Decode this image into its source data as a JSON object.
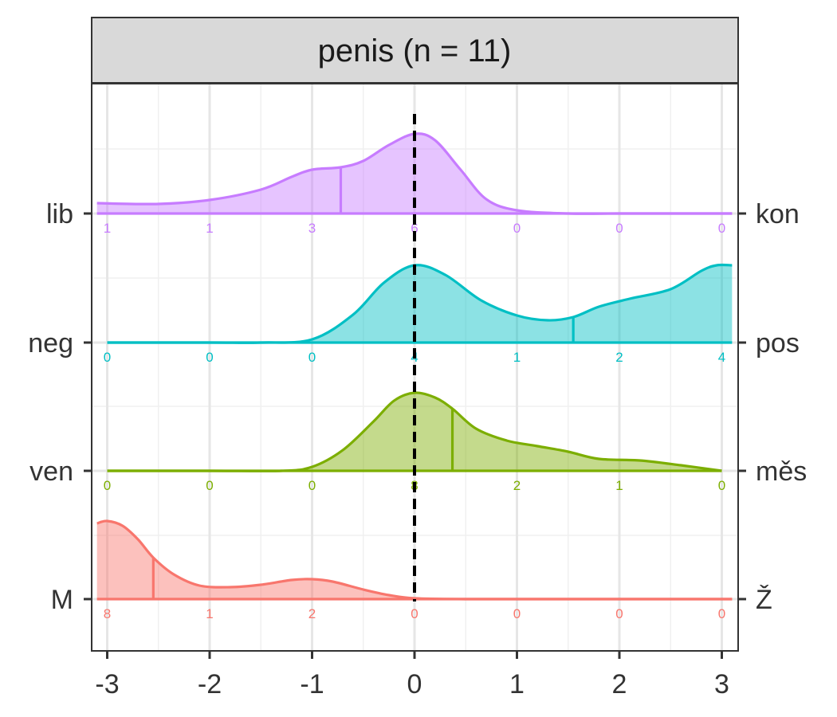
{
  "chart_data": {
    "type": "ridgeline-density",
    "title": "penis (n = 11)",
    "xlabel": "",
    "ylabel": "",
    "xlim": [
      -3.1,
      3.1
    ],
    "x_ticks": [
      "-3",
      "-2",
      "-1",
      "0",
      "1",
      "2",
      "3"
    ],
    "reference_line_x": 0,
    "reference_line_style": "dashed black",
    "grid": true,
    "rows": [
      {
        "left_label": "lib",
        "right_label": "kon",
        "color": "#C77CFF",
        "median": -0.72,
        "count_positions": [
          -3,
          -2,
          -1,
          0,
          1,
          2,
          3
        ],
        "counts": [
          "1",
          "1",
          "3",
          "6",
          "0",
          "0",
          "0"
        ],
        "density": [
          [
            -3.1,
            0.13
          ],
          [
            -2.5,
            0.12
          ],
          [
            -2.0,
            0.17
          ],
          [
            -1.5,
            0.3
          ],
          [
            -1.2,
            0.46
          ],
          [
            -1.0,
            0.55
          ],
          [
            -0.72,
            0.58
          ],
          [
            -0.5,
            0.66
          ],
          [
            -0.25,
            0.86
          ],
          [
            0.0,
            1.0
          ],
          [
            0.2,
            0.92
          ],
          [
            0.45,
            0.55
          ],
          [
            0.7,
            0.18
          ],
          [
            1.0,
            0.04
          ],
          [
            1.5,
            0.0
          ],
          [
            2.0,
            0.0
          ],
          [
            2.5,
            0.0
          ],
          [
            3.1,
            0.0
          ]
        ]
      },
      {
        "left_label": "neg",
        "right_label": "pos",
        "color": "#00BFC4",
        "median": 1.55,
        "count_positions": [
          -3,
          -2,
          -1,
          0,
          1,
          2,
          3
        ],
        "counts": [
          "0",
          "0",
          "0",
          "4",
          "1",
          "2",
          "4"
        ],
        "density": [
          [
            -3.0,
            0.0
          ],
          [
            -2.0,
            0.0
          ],
          [
            -1.5,
            0.0
          ],
          [
            -1.0,
            0.04
          ],
          [
            -0.6,
            0.35
          ],
          [
            -0.3,
            0.75
          ],
          [
            0.0,
            0.97
          ],
          [
            0.3,
            0.85
          ],
          [
            0.65,
            0.53
          ],
          [
            1.0,
            0.34
          ],
          [
            1.3,
            0.28
          ],
          [
            1.55,
            0.32
          ],
          [
            1.8,
            0.45
          ],
          [
            2.1,
            0.55
          ],
          [
            2.5,
            0.67
          ],
          [
            2.8,
            0.9
          ],
          [
            2.95,
            0.97
          ],
          [
            3.1,
            0.97
          ]
        ]
      },
      {
        "left_label": "ven",
        "right_label": "měs",
        "color": "#7CAE00",
        "median": 0.37,
        "count_positions": [
          -3,
          -2,
          -1,
          0,
          1,
          2,
          3
        ],
        "counts": [
          "0",
          "0",
          "0",
          "8",
          "2",
          "1",
          "0"
        ],
        "density": [
          [
            -3.0,
            0.0
          ],
          [
            -2.0,
            0.0
          ],
          [
            -1.3,
            0.0
          ],
          [
            -1.0,
            0.05
          ],
          [
            -0.7,
            0.26
          ],
          [
            -0.4,
            0.62
          ],
          [
            -0.2,
            0.88
          ],
          [
            0.0,
            0.98
          ],
          [
            0.2,
            0.92
          ],
          [
            0.37,
            0.78
          ],
          [
            0.6,
            0.53
          ],
          [
            0.9,
            0.38
          ],
          [
            1.2,
            0.31
          ],
          [
            1.5,
            0.24
          ],
          [
            1.8,
            0.15
          ],
          [
            2.2,
            0.13
          ],
          [
            2.6,
            0.07
          ],
          [
            3.0,
            0.0
          ]
        ]
      },
      {
        "left_label": "M",
        "right_label": "Ž",
        "color": "#F8766D",
        "median": -2.55,
        "count_positions": [
          -3,
          -2,
          -1,
          0,
          1,
          2,
          3
        ],
        "counts": [
          "8",
          "1",
          "2",
          "0",
          "0",
          "0",
          "0"
        ],
        "density": [
          [
            -3.1,
            0.95
          ],
          [
            -3.0,
            0.98
          ],
          [
            -2.85,
            0.92
          ],
          [
            -2.7,
            0.75
          ],
          [
            -2.55,
            0.52
          ],
          [
            -2.35,
            0.31
          ],
          [
            -2.1,
            0.17
          ],
          [
            -1.8,
            0.15
          ],
          [
            -1.5,
            0.18
          ],
          [
            -1.2,
            0.24
          ],
          [
            -1.0,
            0.25
          ],
          [
            -0.8,
            0.22
          ],
          [
            -0.5,
            0.12
          ],
          [
            -0.25,
            0.05
          ],
          [
            0.0,
            0.01
          ],
          [
            0.5,
            0.0
          ],
          [
            1.5,
            0.0
          ],
          [
            3.1,
            0.0
          ]
        ]
      }
    ]
  }
}
